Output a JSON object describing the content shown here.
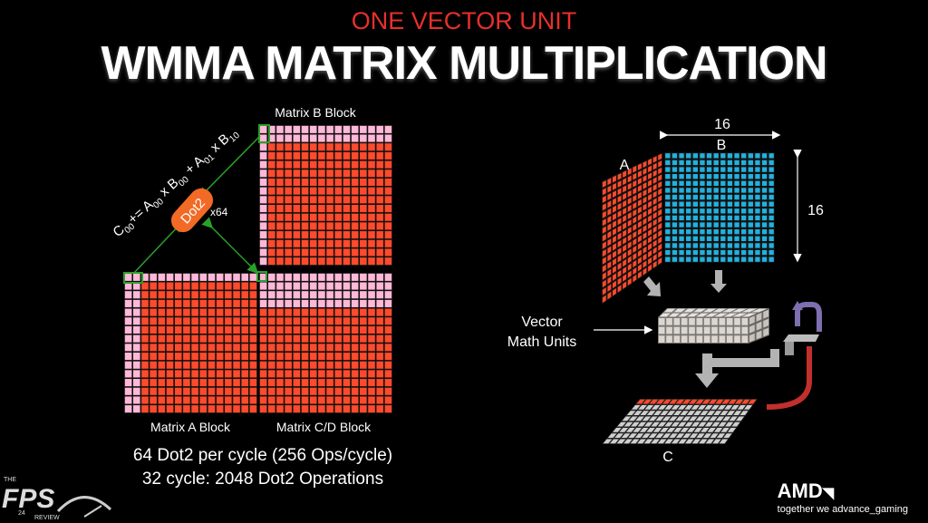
{
  "slide": {
    "subtitle": "ONE VECTOR UNIT",
    "title": "WMMA MATRIX MULTIPLICATION"
  },
  "left_diagram": {
    "matrix_b_label": "Matrix B Block",
    "matrix_a_label": "Matrix A Block",
    "matrix_cd_label": "Matrix C/D Block",
    "dot2_label": "Dot2",
    "dot2_multiplier": "x64",
    "formula": {
      "c": "C",
      "c_sub": "00",
      "op_assign": "+= ",
      "a1": "A",
      "a1_sub": "00",
      "x1": " x B",
      "b1_sub": "00",
      "plus": " + ",
      "a2": "A",
      "a2_sub": "01",
      "x2": " x B",
      "b2_sub": "10"
    }
  },
  "right_diagram": {
    "label_a": "A",
    "label_b": "B",
    "label_c": "C",
    "dim_width": "16",
    "dim_height": "16",
    "vmu_line1": "Vector",
    "vmu_line2": "Math Units"
  },
  "stats": {
    "line1": "64 Dot2 per cycle (256 Ops/cycle)",
    "line2": "32 cycle: 2048 Dot2 Operations"
  },
  "branding": {
    "amd_name": "AMD",
    "amd_tagline": "together we advance_gaming",
    "fps_the": "THE",
    "fps_name": "FPS",
    "fps_num": "24",
    "fps_review": "REVIEW"
  },
  "colors": {
    "accent_red": "#e8302a",
    "grid_red": "#ff4a2c",
    "grid_pink": "#ffb8d8",
    "grid_cyan": "#22b2dd",
    "grid_gray": "#cfcfcf",
    "dot2_orange": "#f26a25",
    "arrow_green": "#2aa02a"
  }
}
